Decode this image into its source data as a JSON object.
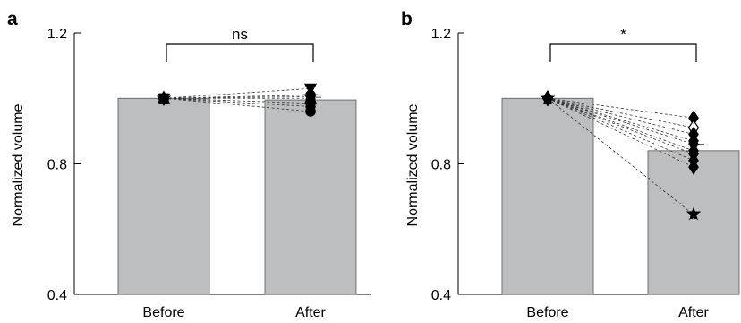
{
  "chart_data": [
    {
      "panel": "a",
      "type": "bar",
      "ylabel": "Normalized volume",
      "ylim": [
        0.4,
        1.2
      ],
      "yticks": [
        0.4,
        0.8,
        1.2
      ],
      "ytick_labels": [
        "0.4",
        "0.8",
        "1.2"
      ],
      "categories": [
        "Before",
        "After"
      ],
      "values": [
        1.0,
        0.995
      ],
      "errors": [
        0,
        0.008
      ],
      "bar_color": "#bcbec0",
      "significance": {
        "label": "ns",
        "between": [
          0,
          1
        ]
      },
      "subjects": [
        {
          "marker": "circle",
          "before": 1.0,
          "after": 0.96
        },
        {
          "marker": "diamond",
          "before": 1.0,
          "after": 0.975
        },
        {
          "marker": "square",
          "before": 1.0,
          "after": 0.985
        },
        {
          "marker": "triangle-up",
          "before": 1.0,
          "after": 1.0
        },
        {
          "marker": "star",
          "before": 1.0,
          "after": 1.005
        },
        {
          "marker": "circle",
          "before": 1.0,
          "after": 1.01
        },
        {
          "marker": "triangle-down",
          "before": 1.0,
          "after": 1.03
        }
      ]
    },
    {
      "panel": "b",
      "type": "bar",
      "ylabel": "Normalized volume",
      "ylim": [
        0.4,
        1.2
      ],
      "yticks": [
        0.4,
        0.8,
        1.2
      ],
      "ytick_labels": [
        "0.4",
        "0.8",
        "1.2"
      ],
      "categories": [
        "Before",
        "After"
      ],
      "values": [
        1.0,
        0.84
      ],
      "errors": [
        0,
        0.02
      ],
      "bar_color": "#bcbec0",
      "significance": {
        "label": "*",
        "between": [
          0,
          1
        ]
      },
      "subjects": [
        {
          "marker": "diamond",
          "before": 1.0,
          "after": 0.94
        },
        {
          "marker": "diamond-open",
          "before": 1.0,
          "after": 0.91
        },
        {
          "marker": "diamond",
          "before": 1.0,
          "after": 0.89
        },
        {
          "marker": "diamond",
          "before": 1.0,
          "after": 0.87
        },
        {
          "marker": "diamond",
          "before": 1.0,
          "after": 0.86
        },
        {
          "marker": "diamond",
          "before": 1.0,
          "after": 0.84
        },
        {
          "marker": "diamond",
          "before": 1.0,
          "after": 0.83
        },
        {
          "marker": "diamond",
          "before": 1.0,
          "after": 0.81
        },
        {
          "marker": "diamond",
          "before": 1.0,
          "after": 0.79
        },
        {
          "marker": "star",
          "before": 1.0,
          "after": 0.645
        }
      ]
    }
  ]
}
